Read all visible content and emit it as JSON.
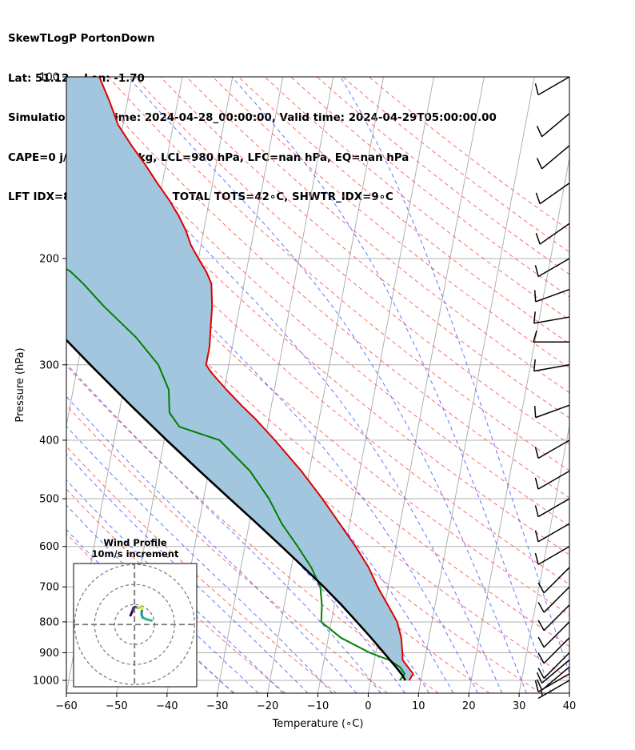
{
  "header": {
    "title": "SkewTLogP PortonDown",
    "location": "Lat: 51.12    Lon: -1.70",
    "times": "Simulation start time: 2024-04-28_00:00:00, Valid time: 2024-04-29T05:00:00.00",
    "indices1": "CAPE=0 j/kg, CIN=0 j/kg, LCL=980 hPa, LFC=nan hPa, EQ=nan hPa",
    "indices2": "LFT IDX=8∘C, K IDX=11∘C, TOTAL TOTS=42∘C, SHWTR_IDX=9∘C"
  },
  "chart_data": {
    "type": "line",
    "subtype": "skew-t log-p",
    "xlabel": "Temperature (∘C)",
    "ylabel": "Pressure (hPa)",
    "xlim": [
      -60,
      40
    ],
    "ylim": [
      1050,
      100
    ],
    "y_scale": "log",
    "x_ticks": [
      -60,
      -50,
      -40,
      -30,
      -20,
      -10,
      0,
      10,
      20,
      30,
      40
    ],
    "y_ticks": [
      100,
      200,
      300,
      400,
      500,
      600,
      700,
      800,
      900,
      1000
    ],
    "grid": true,
    "series": [
      {
        "role": "temperature",
        "color": "#e00000",
        "p": [
          1000,
          975,
          950,
          925,
          900,
          850,
          800,
          750,
          700,
          650,
          600,
          550,
          500,
          450,
          400,
          370,
          350,
          330,
          310,
          300,
          280,
          260,
          240,
          220,
          210,
          200,
          190,
          180,
          170,
          160,
          150,
          140,
          130,
          120,
          110,
          100
        ],
        "t": [
          7.7,
          8.2,
          6.9,
          5.6,
          5.3,
          4.5,
          3.1,
          0.6,
          -2.1,
          -4.6,
          -8.0,
          -12.0,
          -16.4,
          -21.6,
          -28.0,
          -32.5,
          -36.0,
          -39.5,
          -43.0,
          -44.5,
          -44.5,
          -45.0,
          -45.5,
          -46.5,
          -48.0,
          -50.0,
          -52.0,
          -53.5,
          -55.5,
          -58.0,
          -61.0,
          -64.0,
          -67.5,
          -71.0,
          -73.5,
          -76.5
        ]
      },
      {
        "role": "dewpoint",
        "color": "#008000",
        "p": [
          1000,
          975,
          950,
          925,
          900,
          850,
          800,
          750,
          700,
          650,
          600,
          550,
          500,
          450,
          400,
          380,
          360,
          330,
          300,
          270,
          240,
          220,
          210,
          200,
          190,
          180,
          170,
          160,
          150,
          140,
          130,
          120,
          110,
          100
        ],
        "t": [
          5.8,
          6.5,
          5.3,
          2.9,
          -1.2,
          -7.5,
          -12.0,
          -12.5,
          -13.5,
          -16.0,
          -19.5,
          -23.5,
          -27.0,
          -31.8,
          -39.0,
          -47.5,
          -50.0,
          -51.0,
          -54.0,
          -59.5,
          -67.0,
          -72.0,
          -75.0,
          -80.0,
          -85.5,
          -91.0,
          -95.0,
          -100.0,
          -104.0,
          -109.0,
          -113.5,
          -118.5,
          -122.5,
          -128.0
        ]
      },
      {
        "role": "parcel",
        "color": "#000000",
        "p": [
          1000,
          980,
          950,
          900,
          850,
          800,
          750,
          700,
          650,
          600,
          550,
          500,
          450,
          400,
          350,
          300,
          250,
          200,
          150,
          100
        ],
        "t": [
          6.9,
          6.1,
          4.5,
          1.6,
          -1.5,
          -4.9,
          -8.6,
          -12.8,
          -17.5,
          -22.7,
          -28.4,
          -34.8,
          -41.8,
          -49.5,
          -58.0,
          -67.5,
          -78.5,
          -91.5,
          -108.0,
          -131.0
        ]
      }
    ],
    "shaded_region": "between parcel and temperature profile",
    "wind_barbs": {
      "p": [
        1000,
        975,
        950,
        925,
        900,
        850,
        800,
        750,
        700,
        650,
        600,
        550,
        500,
        450,
        400,
        350,
        300,
        275,
        250,
        225,
        200,
        175,
        150,
        130,
        115,
        100
      ],
      "speed_kt": [
        5,
        10,
        10,
        10,
        10,
        10,
        10,
        10,
        10,
        10,
        10,
        10,
        10,
        10,
        10,
        10,
        10,
        10,
        10,
        10,
        10,
        10,
        10,
        10,
        10,
        10
      ],
      "direction_deg": [
        300,
        300,
        310,
        310,
        315,
        315,
        315,
        315,
        315,
        315,
        300,
        300,
        300,
        300,
        300,
        290,
        280,
        270,
        280,
        290,
        300,
        305,
        305,
        310,
        310,
        300
      ]
    },
    "inset": {
      "title": "Wind Profile",
      "subtitle": "10m/s increment",
      "rings_ms": [
        10,
        20,
        30
      ],
      "hodograph_u": [
        8.5,
        6.0,
        4.0,
        3.5,
        3.8,
        3.2,
        2.6,
        1.5,
        0.6,
        -0.3,
        -0.6,
        -0.8,
        -1.2,
        -2.0
      ],
      "hodograph_v": [
        2.0,
        2.6,
        3.5,
        5.2,
        7.8,
        8.8,
        8.6,
        8.2,
        8.8,
        8.6,
        8.2,
        7.6,
        6.4,
        4.6
      ]
    }
  }
}
